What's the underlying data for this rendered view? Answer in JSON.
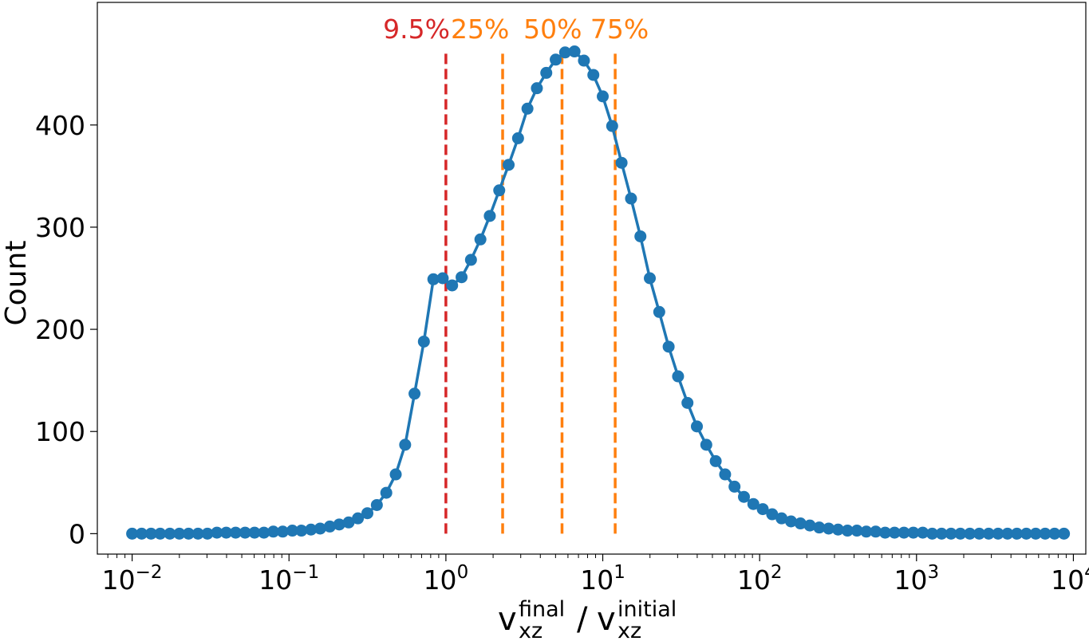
{
  "chart_data": {
    "type": "line",
    "x_scale": "log",
    "xlabel": {
      "v1": "v",
      "sup1": "final",
      "sub1": "xz",
      "slash": "/",
      "v2": "v",
      "sup2": "initial",
      "sub2": "xz"
    },
    "ylabel": "Count",
    "xlim": [
      0.006,
      12000
    ],
    "ylim": [
      -20,
      520
    ],
    "x_ticks": [
      {
        "value": 0.01,
        "base": "10",
        "exp": "−2"
      },
      {
        "value": 0.1,
        "base": "10",
        "exp": "−1"
      },
      {
        "value": 1,
        "base": "10",
        "exp": "0"
      },
      {
        "value": 10,
        "base": "10",
        "exp": "1"
      },
      {
        "value": 100,
        "base": "10",
        "exp": "2"
      },
      {
        "value": 1000,
        "base": "10",
        "exp": "3"
      },
      {
        "value": 10000,
        "base": "10",
        "exp": "4"
      }
    ],
    "y_ticks": [
      {
        "value": 0,
        "label": "0"
      },
      {
        "value": 100,
        "label": "100"
      },
      {
        "value": 200,
        "label": "200"
      },
      {
        "value": 300,
        "label": "300"
      },
      {
        "value": 400,
        "label": "400"
      }
    ],
    "grid": false,
    "series": [
      {
        "color": "#1f77b4",
        "marker": "circle",
        "points": [
          [
            0.01,
            0
          ],
          [
            0.0115,
            0
          ],
          [
            0.0132,
            0
          ],
          [
            0.0151,
            0
          ],
          [
            0.0174,
            0
          ],
          [
            0.02,
            0
          ],
          [
            0.0229,
            0
          ],
          [
            0.0263,
            0
          ],
          [
            0.0302,
            0
          ],
          [
            0.0347,
            1
          ],
          [
            0.0398,
            1
          ],
          [
            0.0457,
            1
          ],
          [
            0.0525,
            1
          ],
          [
            0.0603,
            1
          ],
          [
            0.0692,
            1
          ],
          [
            0.0794,
            2
          ],
          [
            0.0912,
            2
          ],
          [
            0.105,
            3
          ],
          [
            0.12,
            3
          ],
          [
            0.138,
            4
          ],
          [
            0.158,
            5
          ],
          [
            0.182,
            7
          ],
          [
            0.209,
            9
          ],
          [
            0.24,
            11
          ],
          [
            0.275,
            15
          ],
          [
            0.316,
            20
          ],
          [
            0.363,
            28
          ],
          [
            0.417,
            40
          ],
          [
            0.479,
            58
          ],
          [
            0.55,
            87
          ],
          [
            0.631,
            137
          ],
          [
            0.724,
            188
          ],
          [
            0.832,
            249
          ],
          [
            0.955,
            250
          ],
          [
            1.096,
            243
          ],
          [
            1.259,
            251
          ],
          [
            1.445,
            268
          ],
          [
            1.66,
            288
          ],
          [
            1.905,
            311
          ],
          [
            2.188,
            336
          ],
          [
            2.512,
            361
          ],
          [
            2.884,
            387
          ],
          [
            3.311,
            416
          ],
          [
            3.802,
            436
          ],
          [
            4.365,
            451
          ],
          [
            5.012,
            464
          ],
          [
            5.754,
            471
          ],
          [
            6.607,
            472
          ],
          [
            7.586,
            463
          ],
          [
            8.71,
            449
          ],
          [
            10.0,
            428
          ],
          [
            11.48,
            399
          ],
          [
            13.18,
            363
          ],
          [
            15.14,
            328
          ],
          [
            17.38,
            291
          ],
          [
            19.95,
            250
          ],
          [
            22.91,
            217
          ],
          [
            26.3,
            183
          ],
          [
            30.2,
            154
          ],
          [
            34.67,
            128
          ],
          [
            39.81,
            105
          ],
          [
            45.71,
            87
          ],
          [
            52.48,
            71
          ],
          [
            60.26,
            58
          ],
          [
            69.18,
            46
          ],
          [
            79.43,
            36
          ],
          [
            91.2,
            29
          ],
          [
            104.7,
            24
          ],
          [
            120.2,
            19
          ],
          [
            138.0,
            15
          ],
          [
            158.5,
            12
          ],
          [
            182.0,
            10
          ],
          [
            208.9,
            8
          ],
          [
            239.9,
            6
          ],
          [
            275.4,
            5
          ],
          [
            316.2,
            4
          ],
          [
            363.1,
            3
          ],
          [
            416.9,
            3
          ],
          [
            478.6,
            2
          ],
          [
            549.5,
            2
          ],
          [
            631.0,
            1
          ],
          [
            724.4,
            1
          ],
          [
            831.8,
            1
          ],
          [
            955.0,
            1
          ],
          [
            1096,
            1
          ],
          [
            1259,
            0
          ],
          [
            1445,
            0
          ],
          [
            1660,
            0
          ],
          [
            1905,
            0
          ],
          [
            2188,
            0
          ],
          [
            2512,
            0
          ],
          [
            2884,
            0
          ],
          [
            3311,
            0
          ],
          [
            3802,
            0
          ],
          [
            4365,
            0
          ],
          [
            5012,
            0
          ],
          [
            5754,
            0
          ],
          [
            6607,
            0
          ],
          [
            7586,
            0
          ],
          [
            8710,
            0
          ]
        ]
      }
    ],
    "vlines": [
      {
        "x": 1.0,
        "label": "9.5%",
        "color": "#d62728",
        "label_x": 0.65
      },
      {
        "x": 2.3,
        "label": "25%",
        "color": "#ff7f0e",
        "label_x": 1.65
      },
      {
        "x": 5.5,
        "label": "50%",
        "color": "#ff7f0e",
        "label_x": 4.8
      },
      {
        "x": 12.0,
        "label": "75%",
        "color": "#ff7f0e",
        "label_x": 12.8
      }
    ],
    "vline_ytop": 472
  }
}
